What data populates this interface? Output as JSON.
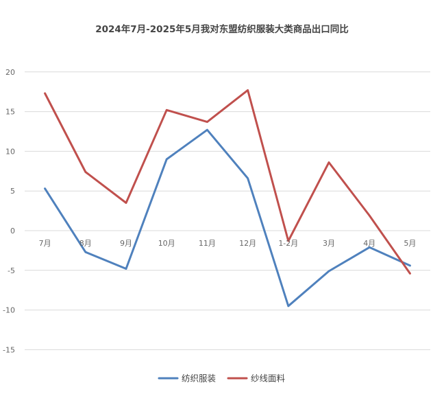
{
  "chart_data": {
    "type": "line",
    "title": "2024年7月-2025年5月我对东盟纺织服装大类商品出口同比",
    "xlabel": "",
    "ylabel": "",
    "categories": [
      "7月",
      "8月",
      "9月",
      "10月",
      "11月",
      "12月",
      "1-2月",
      "3月",
      "4月",
      "5月"
    ],
    "ylim": [
      -15,
      20
    ],
    "yticks": [
      20,
      15,
      10,
      5,
      0,
      -5,
      -10,
      -15
    ],
    "yticks_labels": [
      "20",
      "15",
      "10",
      "5",
      "0",
      "-5",
      "-10",
      "-15"
    ],
    "grid": true,
    "legend_position": "bottom",
    "series": [
      {
        "name": "纺织服装",
        "color": "#4f81bd",
        "values": [
          5.3,
          -2.7,
          -4.8,
          9.0,
          12.7,
          6.6,
          -9.5,
          -5.1,
          -2.1,
          -4.4
        ]
      },
      {
        "name": "纱线面料",
        "color": "#c0504d",
        "values": [
          17.3,
          7.4,
          3.5,
          15.2,
          13.7,
          17.7,
          -1.3,
          8.6,
          1.9,
          -5.4
        ]
      }
    ]
  }
}
